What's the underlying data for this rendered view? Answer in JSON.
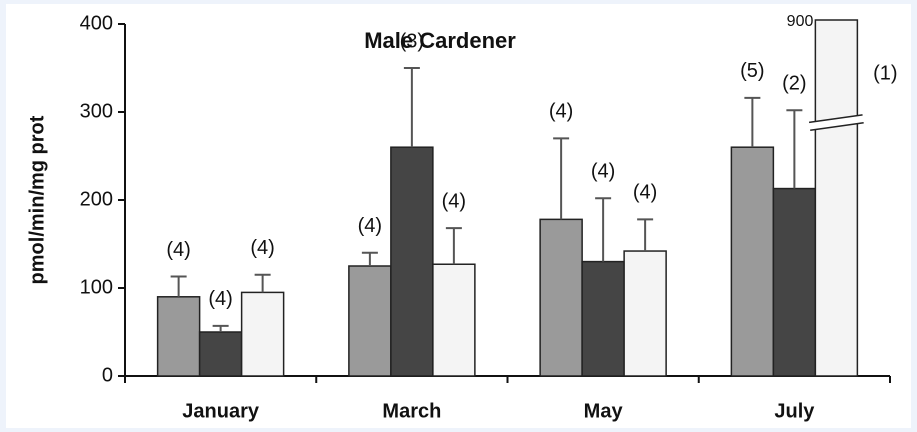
{
  "chart_data": {
    "type": "bar",
    "title": "Male Cardener",
    "y_label": "pmol/min/mg prot",
    "categories": [
      "January",
      "March",
      "May",
      "July"
    ],
    "series": [
      {
        "color": "#9a9a9a",
        "values": [
          90,
          125,
          178,
          260
        ],
        "errors": [
          23,
          15,
          92,
          56
        ],
        "n_labels": [
          "(4)",
          "(4)",
          "(4)",
          "(5)"
        ]
      },
      {
        "color": "#454545",
        "values": [
          50,
          260,
          130,
          213
        ],
        "errors": [
          7,
          90,
          72,
          89
        ],
        "n_labels": [
          "(4)",
          "(3)",
          "(4)",
          "(2)"
        ]
      },
      {
        "color": "#f4f4f4",
        "values": [
          95,
          127,
          142,
          900
        ],
        "errors": [
          20,
          41,
          36,
          null
        ],
        "n_labels": [
          "(4)",
          "(4)",
          "(4)",
          "(1)"
        ],
        "value_labels": [
          null,
          null,
          null,
          "900"
        ]
      }
    ],
    "ylim": [
      0,
      400
    ],
    "yticks": [
      0,
      100,
      200,
      300,
      400
    ]
  }
}
